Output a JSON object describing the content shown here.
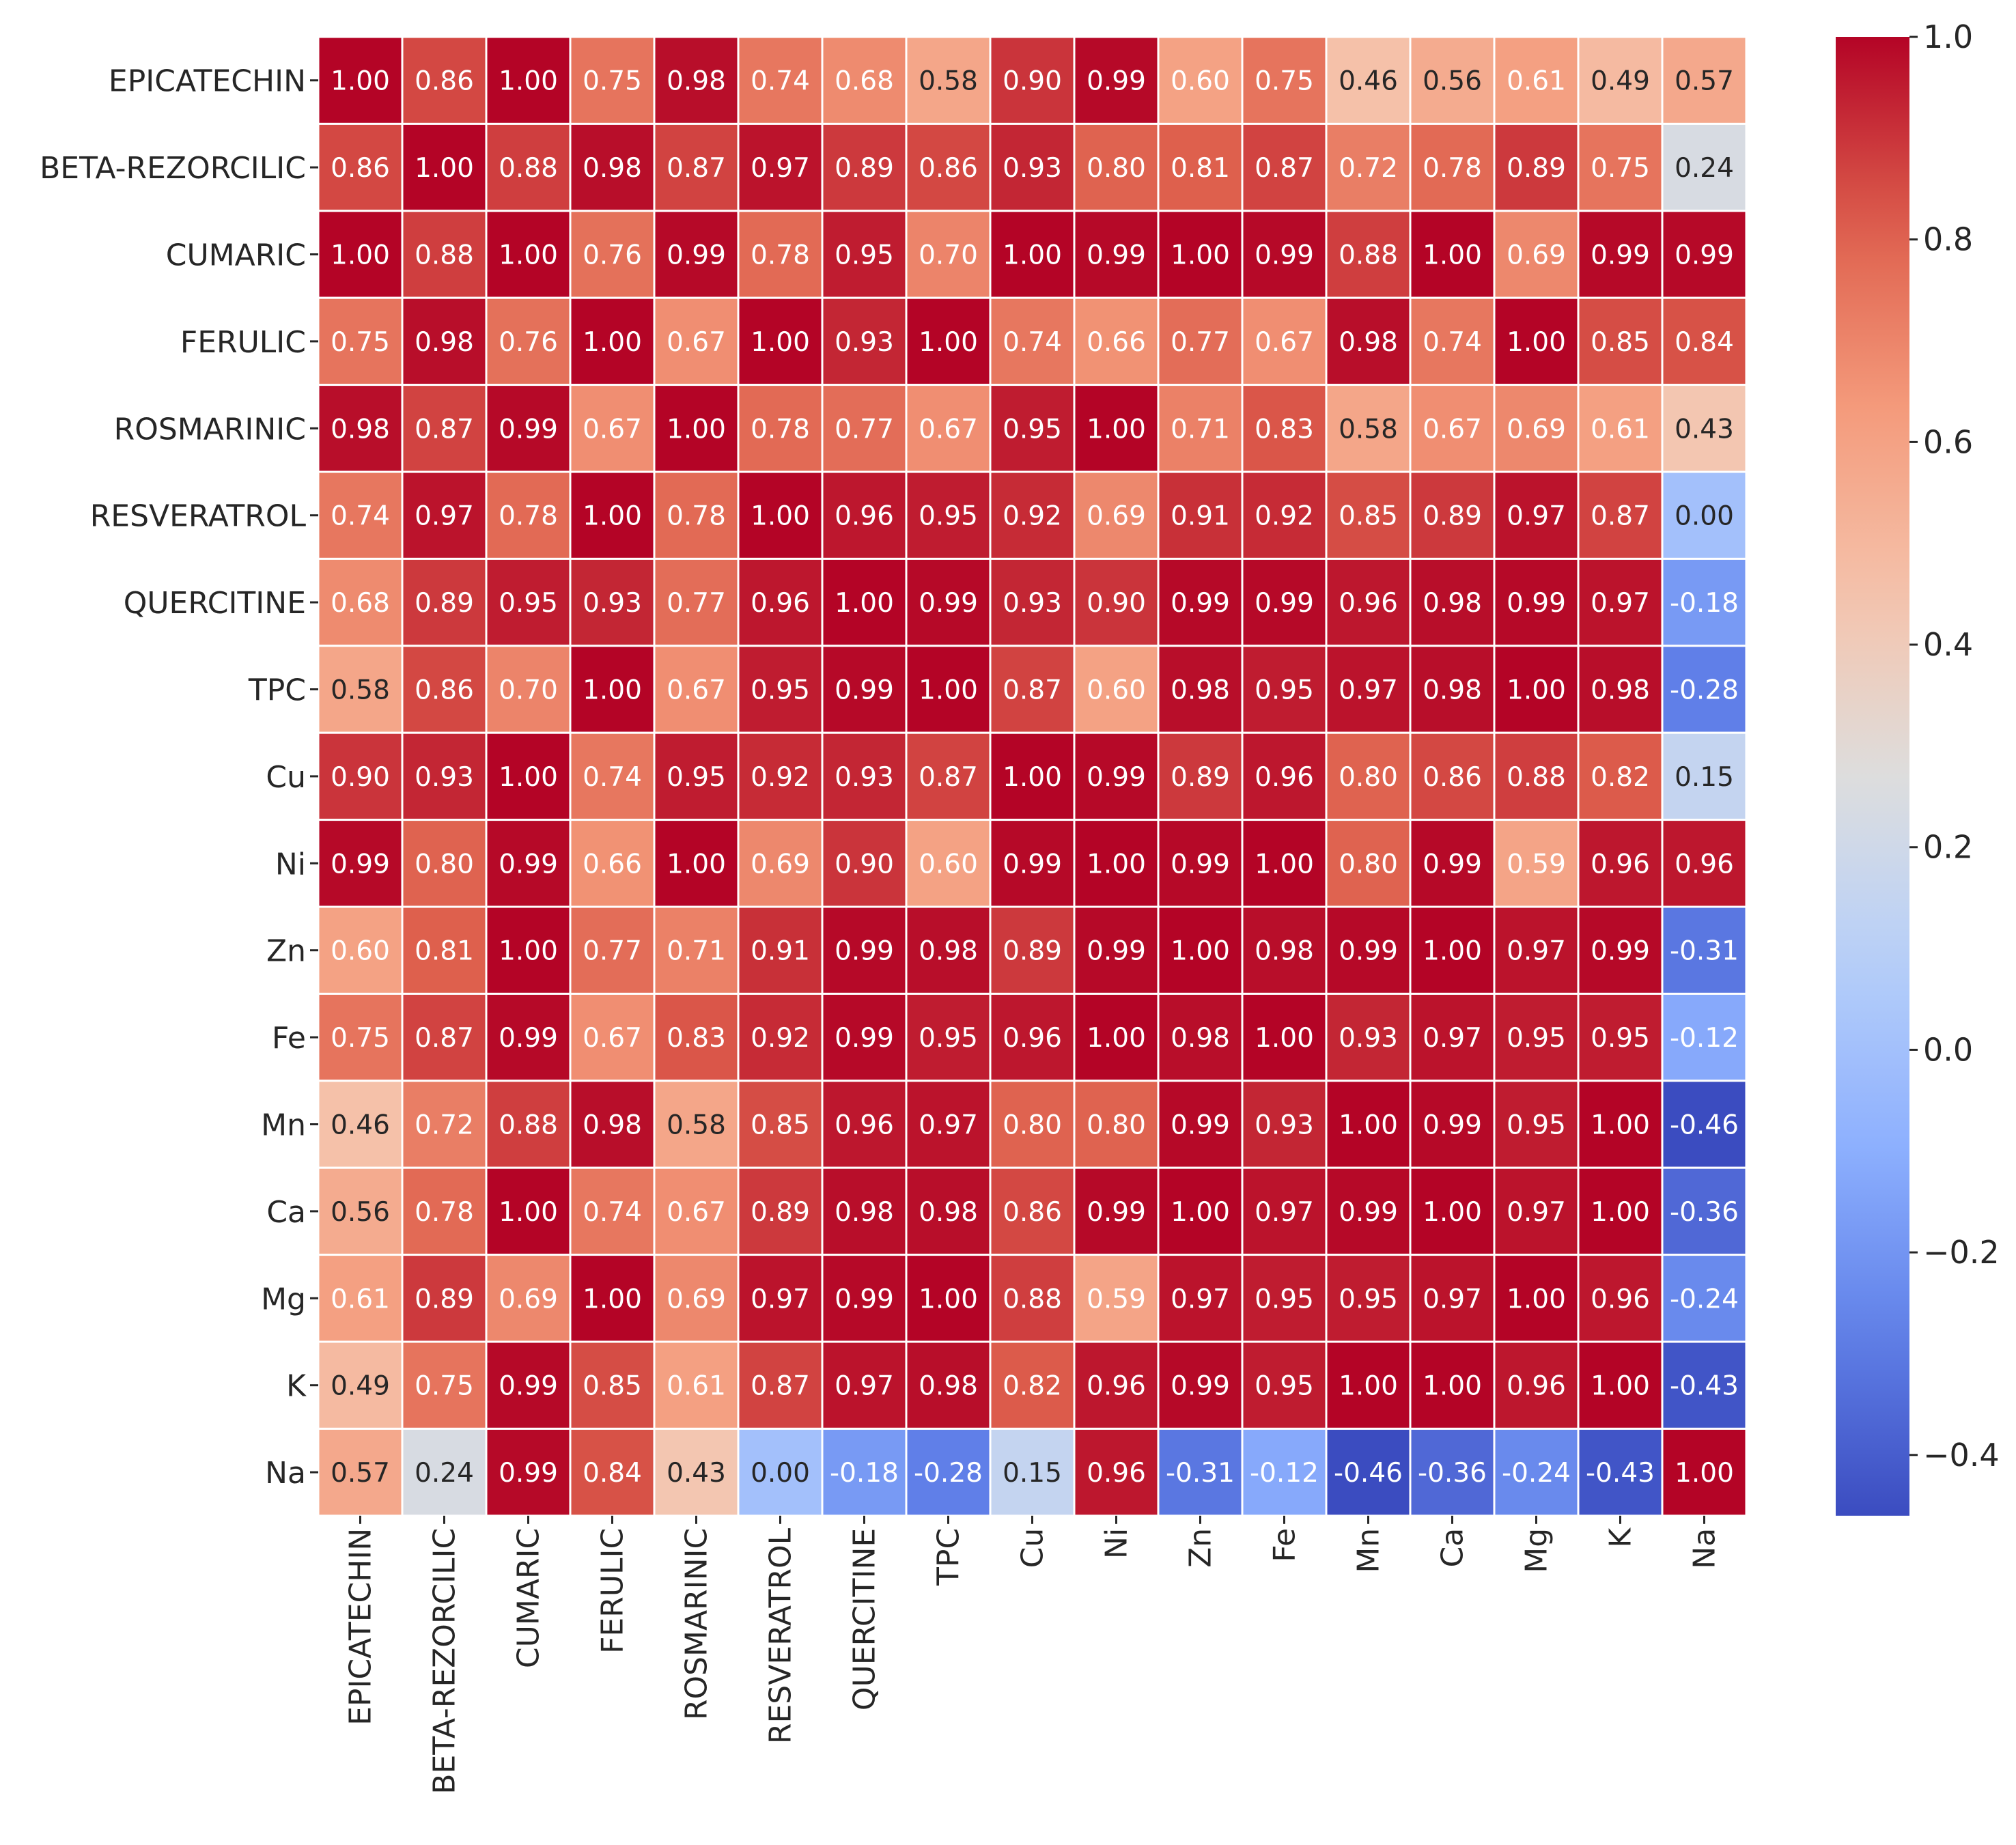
{
  "chart_data": {
    "type": "heatmap",
    "colormap": "coolwarm",
    "grid_color": "#ffffff",
    "row_labels": [
      "EPICATECHIN",
      "BETA-REZORCILIC",
      "CUMARIC",
      "FERULIC",
      "ROSMARINIC",
      "RESVERATROL",
      "QUERCITINE",
      "TPC",
      "Cu",
      "Ni",
      "Zn",
      "Fe",
      "Mn",
      "Ca",
      "Mg",
      "K",
      "Na"
    ],
    "col_labels": [
      "EPICATECHIN",
      "BETA-REZORCILIC",
      "CUMARIC",
      "FERULIC",
      "ROSMARINIC",
      "RESVERATROL",
      "QUERCITINE",
      "TPC",
      "Cu",
      "Ni",
      "Zn",
      "Fe",
      "Mn",
      "Ca",
      "Mg",
      "K",
      "Na"
    ],
    "values": [
      [
        1.0,
        0.86,
        1.0,
        0.75,
        0.98,
        0.74,
        0.68,
        0.58,
        0.9,
        0.99,
        0.6,
        0.75,
        0.46,
        0.56,
        0.61,
        0.49,
        0.57
      ],
      [
        0.86,
        1.0,
        0.88,
        0.98,
        0.87,
        0.97,
        0.89,
        0.86,
        0.93,
        0.8,
        0.81,
        0.87,
        0.72,
        0.78,
        0.89,
        0.75,
        0.24
      ],
      [
        1.0,
        0.88,
        1.0,
        0.76,
        0.99,
        0.78,
        0.95,
        0.7,
        1.0,
        0.99,
        1.0,
        0.99,
        0.88,
        1.0,
        0.69,
        0.99,
        0.99
      ],
      [
        0.75,
        0.98,
        0.76,
        1.0,
        0.67,
        1.0,
        0.93,
        1.0,
        0.74,
        0.66,
        0.77,
        0.67,
        0.98,
        0.74,
        1.0,
        0.85,
        0.84
      ],
      [
        0.98,
        0.87,
        0.99,
        0.67,
        1.0,
        0.78,
        0.77,
        0.67,
        0.95,
        1.0,
        0.71,
        0.83,
        0.58,
        0.67,
        0.69,
        0.61,
        0.43
      ],
      [
        0.74,
        0.97,
        0.78,
        1.0,
        0.78,
        1.0,
        0.96,
        0.95,
        0.92,
        0.69,
        0.91,
        0.92,
        0.85,
        0.89,
        0.97,
        0.87,
        0.0
      ],
      [
        0.68,
        0.89,
        0.95,
        0.93,
        0.77,
        0.96,
        1.0,
        0.99,
        0.93,
        0.9,
        0.99,
        0.99,
        0.96,
        0.98,
        0.99,
        0.97,
        -0.18
      ],
      [
        0.58,
        0.86,
        0.7,
        1.0,
        0.67,
        0.95,
        0.99,
        1.0,
        0.87,
        0.6,
        0.98,
        0.95,
        0.97,
        0.98,
        1.0,
        0.98,
        -0.28
      ],
      [
        0.9,
        0.93,
        1.0,
        0.74,
        0.95,
        0.92,
        0.93,
        0.87,
        1.0,
        0.99,
        0.89,
        0.96,
        0.8,
        0.86,
        0.88,
        0.82,
        0.15
      ],
      [
        0.99,
        0.8,
        0.99,
        0.66,
        1.0,
        0.69,
        0.9,
        0.6,
        0.99,
        1.0,
        0.99,
        1.0,
        0.8,
        0.99,
        0.59,
        0.96,
        0.96
      ],
      [
        0.6,
        0.81,
        1.0,
        0.77,
        0.71,
        0.91,
        0.99,
        0.98,
        0.89,
        0.99,
        1.0,
        0.98,
        0.99,
        1.0,
        0.97,
        0.99,
        -0.31
      ],
      [
        0.75,
        0.87,
        0.99,
        0.67,
        0.83,
        0.92,
        0.99,
        0.95,
        0.96,
        1.0,
        0.98,
        1.0,
        0.93,
        0.97,
        0.95,
        0.95,
        -0.12
      ],
      [
        0.46,
        0.72,
        0.88,
        0.98,
        0.58,
        0.85,
        0.96,
        0.97,
        0.8,
        0.8,
        0.99,
        0.93,
        1.0,
        0.99,
        0.95,
        1.0,
        -0.46
      ],
      [
        0.56,
        0.78,
        1.0,
        0.74,
        0.67,
        0.89,
        0.98,
        0.98,
        0.86,
        0.99,
        1.0,
        0.97,
        0.99,
        1.0,
        0.97,
        1.0,
        -0.36
      ],
      [
        0.61,
        0.89,
        0.69,
        1.0,
        0.69,
        0.97,
        0.99,
        1.0,
        0.88,
        0.59,
        0.97,
        0.95,
        0.95,
        0.97,
        1.0,
        0.96,
        -0.24
      ],
      [
        0.49,
        0.75,
        0.99,
        0.85,
        0.61,
        0.87,
        0.97,
        0.98,
        0.82,
        0.96,
        0.99,
        0.95,
        1.0,
        1.0,
        0.96,
        1.0,
        -0.43
      ],
      [
        0.57,
        0.24,
        0.99,
        0.84,
        0.43,
        0.0,
        -0.18,
        -0.28,
        0.15,
        0.96,
        -0.31,
        -0.12,
        -0.46,
        -0.36,
        -0.24,
        -0.43,
        1.0
      ]
    ],
    "colorbar": {
      "vmin": -0.46,
      "vmax": 1.0,
      "ticks": [
        1.0,
        0.8,
        0.6,
        0.4,
        0.2,
        0.0,
        -0.2,
        -0.4
      ],
      "tick_labels": [
        "1.0",
        "0.8",
        "0.6",
        "0.4",
        "0.2",
        "0.0",
        "−0.2",
        "−0.4"
      ]
    },
    "title": "",
    "xlabel": "",
    "ylabel": ""
  }
}
